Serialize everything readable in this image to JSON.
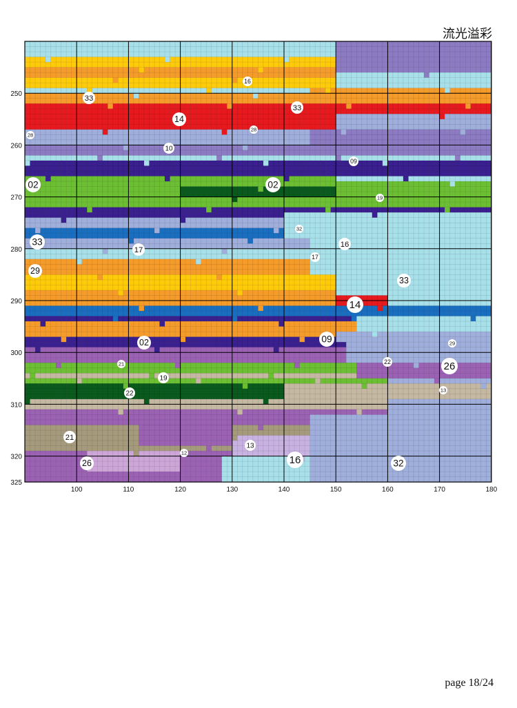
{
  "page": {
    "title": "流光溢彩",
    "footer": "page 18/24"
  },
  "axes": {
    "x_ticks": [
      "100",
      "110",
      "120",
      "130",
      "140",
      "150",
      "160",
      "170",
      "180"
    ],
    "y_ticks": [
      "250",
      "260",
      "270",
      "280",
      "290",
      "300",
      "310",
      "320",
      "325"
    ]
  },
  "palette": {
    "02": "#6cbe32",
    "09": "#3a1f8f",
    "10": "#8c7bc2",
    "12": "#cda6d8",
    "13": "#c8b2e2",
    "14": "#e61a1e",
    "16": "#a8e0ea",
    "17": "#fecb0a",
    "19": "#0a5a1e",
    "21": "#a59a7c",
    "22": "#c5b8a2",
    "26": "#9b62b4",
    "28": "#c0c0c0",
    "29": "#1a6ec0",
    "32": "#9faedb",
    "33": "#f59b2a"
  },
  "labels": [
    {
      "text": "33"
    },
    {
      "text": "16"
    },
    {
      "text": "33"
    },
    {
      "text": "14"
    },
    {
      "text": "28"
    },
    {
      "text": "28"
    },
    {
      "text": "10"
    },
    {
      "text": "09"
    },
    {
      "text": "02"
    },
    {
      "text": "02"
    },
    {
      "text": "19"
    },
    {
      "text": "32"
    },
    {
      "text": "33"
    },
    {
      "text": "17"
    },
    {
      "text": "16"
    },
    {
      "text": "17"
    },
    {
      "text": "29"
    },
    {
      "text": "33"
    },
    {
      "text": "14"
    },
    {
      "text": "02"
    },
    {
      "text": "09"
    },
    {
      "text": "29"
    },
    {
      "text": "21"
    },
    {
      "text": "22"
    },
    {
      "text": "26"
    },
    {
      "text": "19"
    },
    {
      "text": "22"
    },
    {
      "text": "13"
    },
    {
      "text": "21"
    },
    {
      "text": "13"
    },
    {
      "text": "12"
    },
    {
      "text": "26"
    },
    {
      "text": "16"
    },
    {
      "text": "32"
    }
  ]
}
